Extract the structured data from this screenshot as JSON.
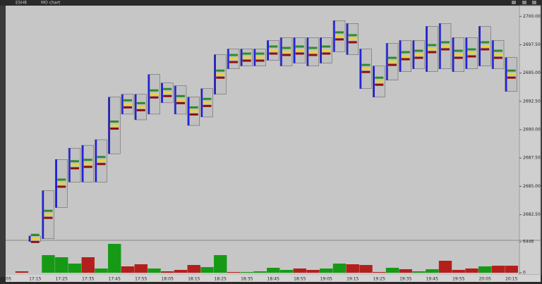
{
  "toolbar": {
    "symbol": "ESH8",
    "chart_name": "MO chart"
  },
  "chart_data": [
    {
      "type": "range",
      "categories": [
        "05",
        null,
        "17:15",
        null,
        "17:25",
        null,
        "17:35",
        null,
        "17:45",
        null,
        "17:55",
        null,
        "18:05",
        null,
        "18:15",
        null,
        "18:25",
        null,
        "18:35",
        null,
        "18:45",
        null,
        "18:55",
        null,
        "19:05",
        null,
        "19:15",
        null,
        "19:25",
        null,
        "19:35",
        null,
        "19:45",
        null,
        "19:55",
        null,
        "20:05",
        null,
        "20:15"
      ],
      "high": [
        null,
        null,
        2680.5,
        2684.5,
        2687.25,
        2688.25,
        2688.5,
        2689,
        2692.75,
        2693,
        2693,
        2694.75,
        2694,
        2693.75,
        2692.75,
        2693.5,
        2696.5,
        2697,
        2697,
        2697,
        2697.75,
        2698,
        2698,
        2698,
        2698,
        2699.5,
        2699.25,
        2697,
        2695.5,
        2697.5,
        2697.75,
        2697.75,
        2699,
        2699.25,
        2698,
        2698,
        2699,
        2697.75,
        2696.25
      ],
      "low": [
        null,
        null,
        2680.25,
        2680.5,
        2683.25,
        2685.5,
        2685.5,
        2685.5,
        2688,
        2691.5,
        2691,
        2691.5,
        2692.5,
        2691.5,
        2690.5,
        2691.25,
        2693.25,
        2695.5,
        2695.75,
        2695.75,
        2696.25,
        2695.75,
        2696,
        2695.75,
        2696,
        2697,
        2696.75,
        2693.75,
        2693,
        2694.5,
        2695.25,
        2695.5,
        2695.25,
        2695.5,
        2695.25,
        2695.5,
        2695.75,
        2695.5,
        2693.5
      ],
      "color": "#2222dd",
      "ylim": [
        2680.3,
        2700.95
      ],
      "yticks": [
        {
          "value": 2682.5,
          "label": "2682.50"
        },
        {
          "value": 2685,
          "label": "2685.00"
        },
        {
          "value": 2687.5,
          "label": "2687.50"
        },
        {
          "value": 2690,
          "label": "2690.00"
        },
        {
          "value": 2692.5,
          "label": "2692.50"
        },
        {
          "value": 2695,
          "label": "2695.00"
        },
        {
          "value": 2697.5,
          "label": "2697.50"
        },
        {
          "value": 2700,
          "label": "2700.00"
        }
      ]
    },
    {
      "type": "bar",
      "values": [
        null,
        290,
        null,
        3660,
        3220,
        1900,
        3220,
        880,
        6000,
        1320,
        1760,
        880,
        290,
        590,
        1610,
        1170,
        3660,
        150,
        150,
        290,
        1030,
        590,
        880,
        590,
        880,
        1900,
        1760,
        1610,
        150,
        1030,
        730,
        290,
        730,
        2490,
        590,
        880,
        1320,
        1460,
        1460
      ],
      "colors": [
        null,
        "#b3201c",
        null,
        "#169a16",
        "#169a16",
        "#169a16",
        "#b3201c",
        "#169a16",
        "#169a16",
        "#b3201c",
        "#b3201c",
        "#169a16",
        "#b3201c",
        "#b3201c",
        "#b3201c",
        "#169a16",
        "#169a16",
        "#b3201c",
        "#169a16",
        "#169a16",
        "#169a16",
        "#169a16",
        "#b3201c",
        "#b3201c",
        "#169a16",
        "#169a16",
        "#b3201c",
        "#b3201c",
        "#b3201c",
        "#169a16",
        "#b3201c",
        "#169a16",
        "#169a16",
        "#b3201c",
        "#b3201c",
        "#b3201c",
        "#169a16",
        "#b3201c",
        "#b3201c"
      ],
      "ylim": [
        0,
        6446
      ],
      "yticks": [
        0,
        6446
      ]
    }
  ]
}
